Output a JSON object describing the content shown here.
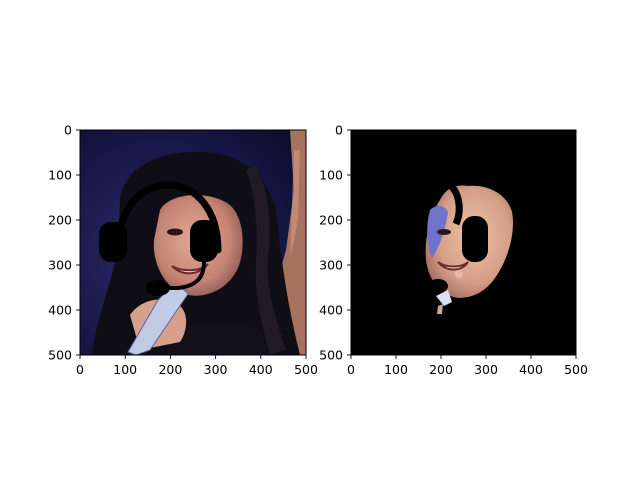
{
  "figure": {
    "background": "#ffffff"
  },
  "chart_data": [
    {
      "type": "image",
      "panel": "left",
      "content": "photo of a smiling woman with long dark hair holding a microphone, a black headset drawing overlaid on her head",
      "xlim": [
        0,
        500
      ],
      "ylim": [
        500,
        0
      ],
      "xticks": [
        0,
        100,
        200,
        300,
        400,
        500
      ],
      "yticks": [
        0,
        100,
        200,
        300,
        400,
        500
      ],
      "xtick_labels": [
        "0",
        "100",
        "200",
        "300",
        "400",
        "500"
      ],
      "ytick_labels": [
        "0",
        "100",
        "200",
        "300",
        "400",
        "500"
      ],
      "grid": false,
      "legend": "none",
      "title": "",
      "xlabel": "",
      "ylabel": "",
      "colors": {
        "background_dark": "#15163e",
        "hair": "#0e0d14",
        "skin": "#c98e7c",
        "headset": "#000000",
        "mic": "#b8c2dd"
      }
    },
    {
      "type": "image",
      "panel": "right",
      "content": "segmentation mask: only the face region is kept, everything else is black",
      "xlim": [
        0,
        500
      ],
      "ylim": [
        500,
        0
      ],
      "xticks": [
        0,
        100,
        200,
        300,
        400,
        500
      ],
      "yticks": [
        0,
        100,
        200,
        300,
        400,
        500
      ],
      "xtick_labels": [
        "0",
        "100",
        "200",
        "300",
        "400",
        "500"
      ],
      "ytick_labels": [
        "0",
        "100",
        "200",
        "300",
        "400",
        "500"
      ],
      "grid": false,
      "legend": "none",
      "title": "",
      "xlabel": "",
      "ylabel": "",
      "colors": {
        "background": "#000000",
        "skin": "#d9a88f"
      }
    }
  ]
}
